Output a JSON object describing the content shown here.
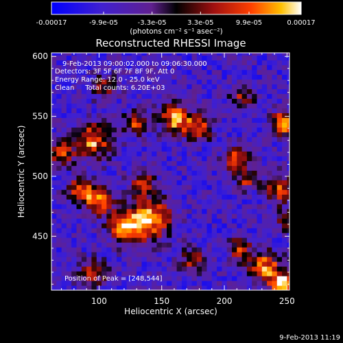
{
  "chart_data": {
    "type": "heatmap",
    "title": "Reconstructed RHESSI Image",
    "xlabel": "Heliocentric X (arcsec)",
    "ylabel": "Heliocentric Y (arcsec)",
    "xlim": [
      62,
      252
    ],
    "ylim": [
      405,
      603
    ],
    "x_ticks": [
      100,
      150,
      200,
      250
    ],
    "y_ticks": [
      450,
      500,
      550,
      600
    ],
    "colorbar": {
      "ticks": [
        "-0.00017",
        "-9.9e-05",
        "-3.3e-05",
        "3.3e-05",
        "9.9e-05",
        "0.00017"
      ],
      "tick_values": [
        -0.00017,
        -9.9e-05,
        -3.3e-05,
        3.3e-05,
        9.9e-05,
        0.00017
      ],
      "unit_label": "(photons cm⁻² s⁻¹ asec⁻²)",
      "range": [
        -0.00017,
        0.00017
      ]
    },
    "annotations": {
      "time_range": "9-Feb-2013 09:00:02.000 to 09:06:30.000",
      "detectors": "Detectors: 3F 5F 6F 7F 8F 9F, Att 0",
      "energy": "Energy Range: 12.0 - 25.0 keV",
      "method": "Clean     Total counts: 6.20E+03",
      "peak": "Position of Peak = [248,544]"
    },
    "timestamp": "9-Feb-2013 11:19",
    "grid": false,
    "grid_cell_arcsec": 4,
    "hot_spots": [
      {
        "x": 248,
        "y": 544,
        "value": 0.00017,
        "sigma": 7
      },
      {
        "x": 248,
        "y": 410,
        "value": 0.00015,
        "sigma": 8
      },
      {
        "x": 232,
        "y": 425,
        "value": 0.00012,
        "sigma": 9
      },
      {
        "x": 212,
        "y": 440,
        "value": 9e-05,
        "sigma": 6
      },
      {
        "x": 140,
        "y": 465,
        "value": 0.00015,
        "sigma": 12
      },
      {
        "x": 120,
        "y": 458,
        "value": 0.00011,
        "sigma": 9
      },
      {
        "x": 100,
        "y": 480,
        "value": 0.00012,
        "sigma": 8
      },
      {
        "x": 85,
        "y": 490,
        "value": 0.0001,
        "sigma": 7
      },
      {
        "x": 95,
        "y": 530,
        "value": 0.00012,
        "sigma": 10
      },
      {
        "x": 70,
        "y": 520,
        "value": 8e-05,
        "sigma": 7
      },
      {
        "x": 162,
        "y": 548,
        "value": 0.00013,
        "sigma": 9
      },
      {
        "x": 180,
        "y": 540,
        "value": 9e-05,
        "sigma": 7
      },
      {
        "x": 130,
        "y": 545,
        "value": 8e-05,
        "sigma": 7
      },
      {
        "x": 210,
        "y": 515,
        "value": 0.0001,
        "sigma": 7
      },
      {
        "x": 218,
        "y": 498,
        "value": 6e-05,
        "sigma": 6
      },
      {
        "x": 244,
        "y": 490,
        "value": 8e-05,
        "sigma": 8
      },
      {
        "x": 135,
        "y": 495,
        "value": 5e-05,
        "sigma": 7
      },
      {
        "x": 95,
        "y": 420,
        "value": 6e-05,
        "sigma": 8
      },
      {
        "x": 250,
        "y": 465,
        "value": 6e-05,
        "sigma": 6
      },
      {
        "x": 175,
        "y": 430,
        "value": 5e-05,
        "sigma": 7
      },
      {
        "x": 105,
        "y": 575,
        "value": 4e-05,
        "sigma": 7
      },
      {
        "x": 215,
        "y": 568,
        "value": 4e-05,
        "sigma": 7
      }
    ]
  }
}
